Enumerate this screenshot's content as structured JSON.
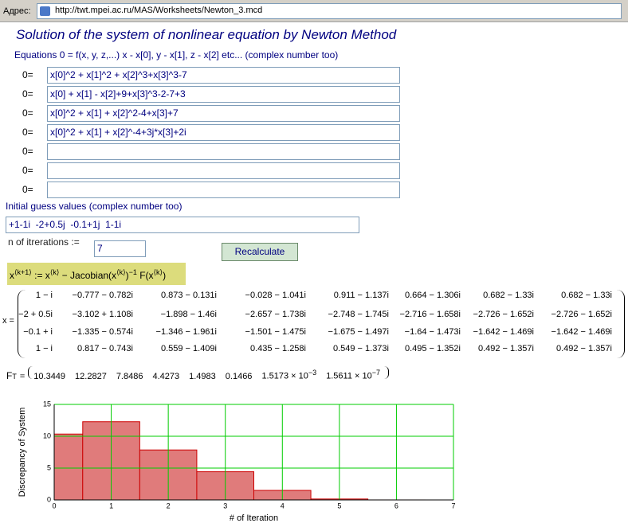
{
  "address_bar": {
    "label": "Адрес:",
    "url": "http://twt.mpei.ac.ru/MAS/Worksheets/Newton_3.mcd"
  },
  "title": "Solution of the system of nonlinear equation by Newton Method",
  "equations_label": "Equations 0 = f(x, y, z,...) x - x[0], y - x[1], z - x[2] etc... (complex number too)",
  "equation_prefix": "0=",
  "equations": [
    "x[0]^2 + x[1]^2 + x[2]^3+x[3]^3-7",
    "x[0] + x[1] - x[2]+9+x[3]^3-2-7+3",
    "x[0]^2 + x[1] + x[2]^2-4+x[3]+7",
    "x[0]^2 + x[1] + x[2]^-4+3j*x[3]+2i"
  ],
  "initial_guess_label": "Initial guess values (complex number too)",
  "initial_guess": "+1-1i  -2+0.5j  -0.1+1j  1-1i",
  "iterations_label": "n of itrerations :=",
  "iterations": "7",
  "button": "Recalculate",
  "formula": [
    {
      "text": "x"
    },
    {
      "sup": "⟨k+1⟩"
    },
    {
      "text": " := x"
    },
    {
      "sup": "⟨k⟩"
    },
    {
      "text": " − Jacobian(x"
    },
    {
      "sup": "⟨k⟩"
    },
    {
      "text": ")"
    },
    {
      "sup": "−1"
    },
    {
      "text": " F(x"
    },
    {
      "sup": "⟨k⟩"
    },
    {
      "text": ")"
    }
  ],
  "matrix_label": "x =",
  "matrix": [
    [
      "1 − i",
      "−0.777 − 0.782i",
      "0.873 − 0.131i",
      "−0.028 − 1.041i",
      "0.911 − 1.137i",
      "0.664 − 1.306i",
      "0.682 − 1.33i",
      "0.682 − 1.33i"
    ],
    [
      "−2 + 0.5i",
      "−3.102 + 1.108i",
      "−1.898 − 1.46i",
      "−2.657 − 1.738i",
      "−2.748 − 1.745i",
      "−2.716 − 1.658i",
      "−2.726 − 1.652i",
      "−2.726 − 1.652i"
    ],
    [
      "−0.1 + i",
      "−1.335 − 0.574i",
      "−1.346 − 1.961i",
      "−1.501 − 1.475i",
      "−1.675 − 1.497i",
      "−1.64 − 1.473i",
      "−1.642 − 1.469i",
      "−1.642 − 1.469i"
    ],
    [
      "1 − i",
      "0.817 − 0.743i",
      "0.559 − 1.409i",
      "0.435 − 1.258i",
      "0.549 − 1.373i",
      "0.495 − 1.352i",
      "0.492 − 1.357i",
      "0.492 − 1.357i"
    ]
  ],
  "f_label": {
    "name": "F",
    "sup": "T",
    "eq": "="
  },
  "f_values": [
    "10.3449",
    "12.2827",
    "7.8486",
    "4.4273",
    "1.4983",
    "0.1466",
    {
      "base": "1.5173 × 10",
      "sup": "−3"
    },
    {
      "base": "1.5611 × 10",
      "sup": "−7"
    }
  ],
  "chart_data": {
    "type": "bar",
    "x": [
      0,
      1,
      2,
      3,
      4,
      5,
      6,
      7
    ],
    "values": [
      10.3449,
      12.2827,
      7.8486,
      4.4273,
      1.4983,
      0.1466,
      0.0015173,
      1.5611e-07
    ],
    "color": "#e07b7b",
    "edge_color": "#cc0000",
    "grid": true,
    "grid_color": "#00cc00",
    "xlim": [
      0,
      7
    ],
    "xticks": [
      0,
      1,
      2,
      3,
      4,
      5,
      6,
      7
    ],
    "ylim": [
      0,
      15
    ],
    "yticks": [
      0,
      5,
      10,
      15
    ],
    "x_label": "# of Iteration",
    "y_label": "Discrepancy of System"
  }
}
